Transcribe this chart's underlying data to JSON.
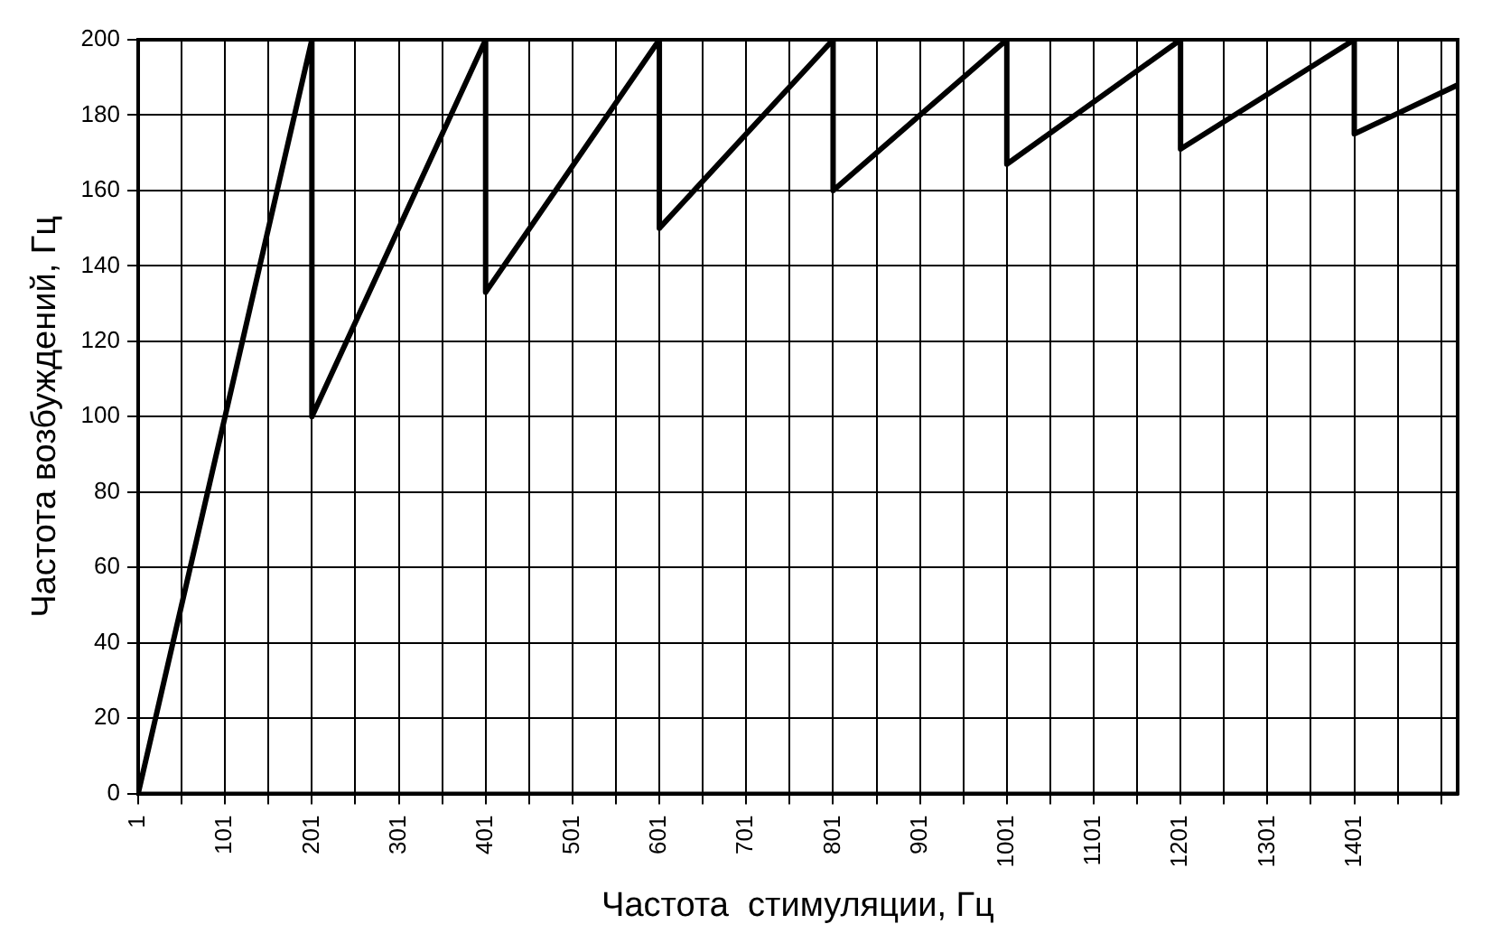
{
  "chart_data": {
    "type": "line",
    "xlabel": "Частота  стимуляции, Гц",
    "ylabel": "Частота возбуждений, Гц",
    "series": [
      {
        "color": "#000000",
        "x": [
          1,
          201,
          201,
          401,
          401,
          601,
          601,
          801,
          801,
          1001,
          1001,
          1201,
          1201,
          1401,
          1401,
          1520
        ],
        "values": [
          0,
          200,
          100,
          200,
          133,
          200,
          150,
          200,
          160,
          200,
          167,
          200,
          171,
          200,
          175,
          188
        ]
      }
    ],
    "xlim": [
      1,
      1520
    ],
    "xticks": [
      1,
      {
        "value": 51,
        "label": null
      },
      101,
      {
        "value": 151,
        "label": null
      },
      201,
      {
        "value": 251,
        "label": null
      },
      301,
      {
        "value": 351,
        "label": null
      },
      401,
      {
        "value": 451,
        "label": null
      },
      501,
      {
        "value": 551,
        "label": null
      },
      601,
      {
        "value": 651,
        "label": null
      },
      701,
      {
        "value": 751,
        "label": null
      },
      801,
      {
        "value": 851,
        "label": null
      },
      901,
      {
        "value": 951,
        "label": null
      },
      1001,
      {
        "value": 1051,
        "label": null
      },
      1101,
      {
        "value": 1151,
        "label": null
      },
      1201,
      {
        "value": 1251,
        "label": null
      },
      1301,
      {
        "value": 1351,
        "label": null
      },
      1401,
      {
        "value": 1451,
        "label": null
      },
      {
        "value": 1501,
        "label": null
      }
    ],
    "ylim": [
      0,
      200
    ],
    "yticks": [
      0,
      20,
      40,
      60,
      80,
      100,
      120,
      140,
      160,
      180,
      200
    ],
    "grid": true,
    "legend": false,
    "marker": "none",
    "line_style": "solid"
  }
}
